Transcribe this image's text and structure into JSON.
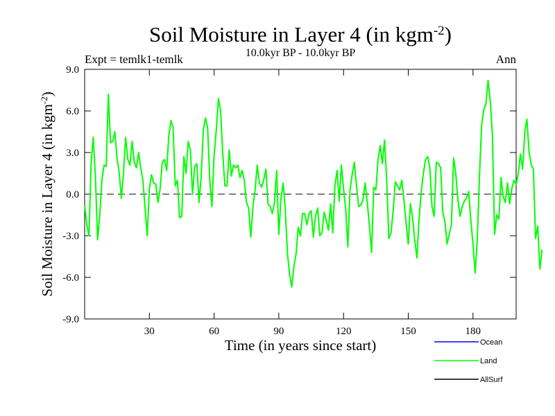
{
  "chart_data": {
    "type": "line",
    "title": {
      "main": "Soil Moisture in Layer 4 (in kgm",
      "sup": "-2",
      "close": ")"
    },
    "subtitle": "10.0kyr BP - 10.0kyr BP",
    "left_label": "Expt = temlk1-temlk",
    "right_label": "Ann",
    "xlabel": "Time (in years since start)",
    "ylabel": {
      "main": "Soil Moisture in Layer 4 (in kgm",
      "sup": "-2",
      "close": ")"
    },
    "xlim": [
      0,
      200
    ],
    "ylim": [
      -9,
      9
    ],
    "x_ticks": [
      30,
      60,
      90,
      120,
      150,
      180
    ],
    "x_tick_labels": [
      "30",
      "60",
      "90",
      "120",
      "150",
      "180"
    ],
    "y_ticks": [
      -9,
      -6,
      -3,
      0,
      3,
      6,
      9
    ],
    "y_tick_labels": [
      "-9.0",
      "-6.0",
      "-3.0",
      "0.0",
      "3.0",
      "6.0",
      "9.0"
    ],
    "zero_line": 0,
    "legend": [
      {
        "name": "Ocean",
        "color": "#0000ff"
      },
      {
        "name": "Land",
        "color": "#00ff00"
      },
      {
        "name": "AllSurf",
        "color": "#000000"
      }
    ],
    "series": [
      {
        "name": "Land",
        "color": "#00ff00",
        "values": [
          -0.8,
          -2.2,
          -3.0,
          2.2,
          4.1,
          1.2,
          -3.3,
          -1.5,
          1.0,
          2.1,
          2.0,
          7.2,
          3.7,
          3.8,
          4.5,
          2.6,
          1.6,
          -0.3,
          1.5,
          4.1,
          2.5,
          2.1,
          3.8,
          2.3,
          1.9,
          3.0,
          1.9,
          1.0,
          -1.0,
          -3.0,
          0.4,
          1.4,
          0.8,
          0.7,
          -0.6,
          0.4,
          2.3,
          2.5,
          1.7,
          4.2,
          5.3,
          4.8,
          0.6,
          1.0,
          -1.7,
          -1.6,
          2.7,
          1.5,
          3.8,
          3.2,
          0.0,
          2.0,
          2.2,
          -0.6,
          1.2,
          4.6,
          5.5,
          4.8,
          1.0,
          -0.9,
          2.8,
          4.6,
          6.9,
          6.0,
          3.0,
          0.6,
          0.6,
          3.2,
          1.3,
          2.1,
          1.9,
          2.1,
          1.2,
          1.7,
          1.0,
          -0.6,
          -1.0,
          -3.1,
          -0.9,
          0.3,
          2.1,
          0.8,
          0.5,
          1.0,
          1.8,
          -0.7,
          -0.9,
          -1.4,
          -0.6,
          1.7,
          -2.9,
          -0.3,
          0.8,
          -1.1,
          -4.3,
          -5.8,
          -6.7,
          -5.2,
          -4.3,
          -2.4,
          -3.0,
          -1.4,
          -1.4,
          -2.2,
          -1.4,
          -1.2,
          -3.1,
          -1.6,
          -1.0,
          -3.0,
          -2.8,
          -1.3,
          -1.9,
          -2.6,
          -0.7,
          -2.8,
          0.6,
          1.7,
          -0.5,
          2.1,
          0.4,
          -1.1,
          -3.8,
          0.3,
          1.4,
          2.3,
          0.6,
          -0.9,
          -0.8,
          -0.4,
          0.8,
          -0.6,
          -2.3,
          -4.2,
          0.5,
          0.3,
          2.5,
          3.5,
          2.2,
          3.9,
          1.0,
          -3.2,
          -2.8,
          -1.2,
          0.9,
          0.6,
          0.3,
          1.0,
          -0.4,
          -2.1,
          -3.6,
          -0.7,
          -1.7,
          -3.3,
          -4.6,
          -1.8,
          0.2,
          1.5,
          2.5,
          2.7,
          1.9,
          -0.9,
          -1.6,
          2.3,
          2.2,
          1.9,
          -1.3,
          -2.0,
          -3.6,
          -2.9,
          -2.2,
          2.6,
          1.5,
          -0.4,
          -1.6,
          -0.9,
          -0.5,
          -0.3,
          0.2,
          -1.9,
          -3.6,
          -5.7,
          -3.2,
          1.3,
          5.0,
          6.1,
          6.5,
          8.2,
          6.7,
          4.3,
          -2.9,
          -1.5,
          -1.8,
          1.2,
          -0.2,
          -0.6,
          0.8,
          -0.7,
          0.4,
          1.0,
          0.7,
          1.5,
          2.9,
          1.8,
          4.5,
          5.4,
          3.0,
          2.1,
          1.8,
          -3.2,
          -2.3,
          -5.4,
          -4.0
        ]
      }
    ]
  }
}
